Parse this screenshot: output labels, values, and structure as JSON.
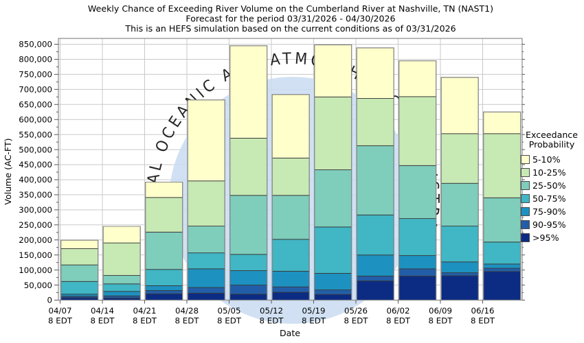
{
  "title": {
    "line1": "Weekly Chance of Exceeding River Volume on the Cumberland River at Nashville, TN (NAST1)",
    "line2": "Forecast for the period 03/31/2026 - 04/30/2026",
    "line3": "This is an HEFS simulation based on the current conditions as of 03/31/2026"
  },
  "y_axis": {
    "label": "Volume (AC-FT)",
    "tick_values": [
      0,
      50000,
      100000,
      150000,
      200000,
      250000,
      300000,
      350000,
      400000,
      450000,
      500000,
      550000,
      600000,
      650000,
      700000,
      750000,
      800000,
      850000
    ]
  },
  "x_axis": {
    "label": "Date",
    "tick_labels": [
      {
        "date": "04/07",
        "time": "8 EDT"
      },
      {
        "date": "04/14",
        "time": "8 EDT"
      },
      {
        "date": "04/21",
        "time": "8 EDT"
      },
      {
        "date": "04/28",
        "time": "8 EDT"
      },
      {
        "date": "05/05",
        "time": "8 EDT"
      },
      {
        "date": "05/12",
        "time": "8 EDT"
      },
      {
        "date": "05/19",
        "time": "8 EDT"
      },
      {
        "date": "05/26",
        "time": "8 EDT"
      },
      {
        "date": "06/02",
        "time": "8 EDT"
      },
      {
        "date": "06/09",
        "time": "8 EDT"
      },
      {
        "date": "06/16",
        "time": "8 EDT"
      }
    ]
  },
  "legend": {
    "title_line1": "Exceedance",
    "title_line2": "Probability",
    "items": [
      {
        "label": "5-10%",
        "color": "#FFFFCC"
      },
      {
        "label": "10-25%",
        "color": "#C7E9B4"
      },
      {
        "label": "25-50%",
        "color": "#7FCDBB"
      },
      {
        "label": "50-75%",
        "color": "#41B6C4"
      },
      {
        "label": "75-90%",
        "color": "#1D91C0"
      },
      {
        "label": "90-95%",
        "color": "#225EA8"
      },
      {
        "label": ">95%",
        "color": "#0C2C84"
      }
    ]
  },
  "watermark": {
    "text": "NATIONAL OCEANIC AND ATMOSPHERIC ADMINISTRATION",
    "text_color": "#aac6e8",
    "circle_color": "#c9dcf2"
  },
  "chart_data": {
    "type": "bar",
    "stacked": true,
    "title": "Weekly Chance of Exceeding River Volume on the Cumberland River at Nashville, TN (NAST1)",
    "xlabel": "Date",
    "ylabel": "Volume (AC-FT)",
    "ylim": [
      0,
      870000
    ],
    "grid": true,
    "legend_position": "right",
    "categories": [
      "04/07",
      "04/14",
      "04/21",
      "04/28",
      "05/05",
      "05/12",
      "05/19",
      "05/26",
      "06/02",
      "06/09",
      "06/16"
    ],
    "value_semantics": "cumulative_stack_top_AC_FT (volume exceeded at the stated probability; segments are drawn between successive levels)",
    "series": [
      {
        "name": "5-10%",
        "color": "#FFFFCC",
        "cumulative_values": [
          199000,
          245000,
          392000,
          665000,
          845000,
          683000,
          848000,
          838000,
          795000,
          740000,
          625000
        ]
      },
      {
        "name": "10-25%",
        "color": "#C7E9B4",
        "cumulative_values": [
          171000,
          190000,
          341000,
          396000,
          538000,
          472000,
          675000,
          670000,
          676000,
          553000,
          553000
        ]
      },
      {
        "name": "25-50%",
        "color": "#7FCDBB",
        "cumulative_values": [
          117000,
          82000,
          226000,
          246000,
          348000,
          348000,
          433000,
          513000,
          447000,
          388000,
          340000
        ]
      },
      {
        "name": "50-75%",
        "color": "#41B6C4",
        "cumulative_values": [
          62000,
          54000,
          102000,
          157000,
          152000,
          202000,
          243000,
          283000,
          271000,
          246000,
          193000
        ]
      },
      {
        "name": "75-90%",
        "color": "#1D91C0",
        "cumulative_values": [
          20000,
          29000,
          48000,
          104000,
          98000,
          96000,
          89000,
          150000,
          148000,
          127000,
          120000
        ]
      },
      {
        "name": "90-95%",
        "color": "#225EA8",
        "cumulative_values": [
          13000,
          14000,
          32000,
          42000,
          50000,
          44000,
          34000,
          80000,
          104000,
          91000,
          106000
        ]
      },
      {
        "name": ">95%",
        "color": "#0C2C84",
        "cumulative_values": [
          8000,
          7000,
          21000,
          23000,
          20000,
          26000,
          19000,
          64000,
          80000,
          81000,
          95000
        ]
      }
    ]
  }
}
